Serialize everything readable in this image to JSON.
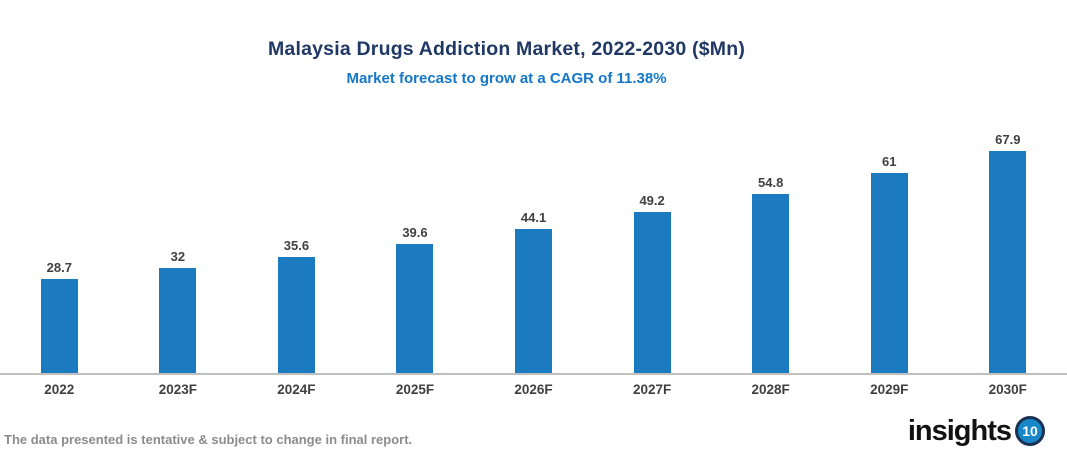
{
  "header": {
    "title": "Malaysia Drugs Addiction Market, 2022-2030 ($Mn)",
    "subtitle": "Market forecast to grow at a CAGR of 11.38%"
  },
  "chart_data": {
    "type": "bar",
    "title": "Malaysia Drugs Addiction Market, 2022-2030 ($Mn)",
    "subtitle": "Market forecast to grow at a CAGR of 11.38%",
    "categories": [
      "2022",
      "2023F",
      "2024F",
      "2025F",
      "2026F",
      "2027F",
      "2028F",
      "2029F",
      "2030F"
    ],
    "values": [
      28.7,
      32,
      35.6,
      39.6,
      44.1,
      49.2,
      54.8,
      61,
      67.9
    ],
    "value_labels": [
      "28.7",
      "32",
      "35.6",
      "39.6",
      "44.1",
      "49.2",
      "54.8",
      "61",
      "67.9"
    ],
    "xlabel": "",
    "ylabel": "",
    "ylim": [
      0,
      70
    ],
    "grid": "off",
    "legend": "none",
    "data_labels": "on",
    "bar_color": "#1B7AC0",
    "axis_line_color": "#BFBFBF",
    "title_color": "#1F3864",
    "subtitle_color": "#1577C8",
    "label_color": "#404040"
  },
  "footer": {
    "disclaimer": "The data presented is tentative & subject to change in final report.",
    "logo_text": "insights",
    "logo_number": "10",
    "logo_circle_fill": "#1787C7",
    "logo_ring_color": "#1B3055"
  }
}
